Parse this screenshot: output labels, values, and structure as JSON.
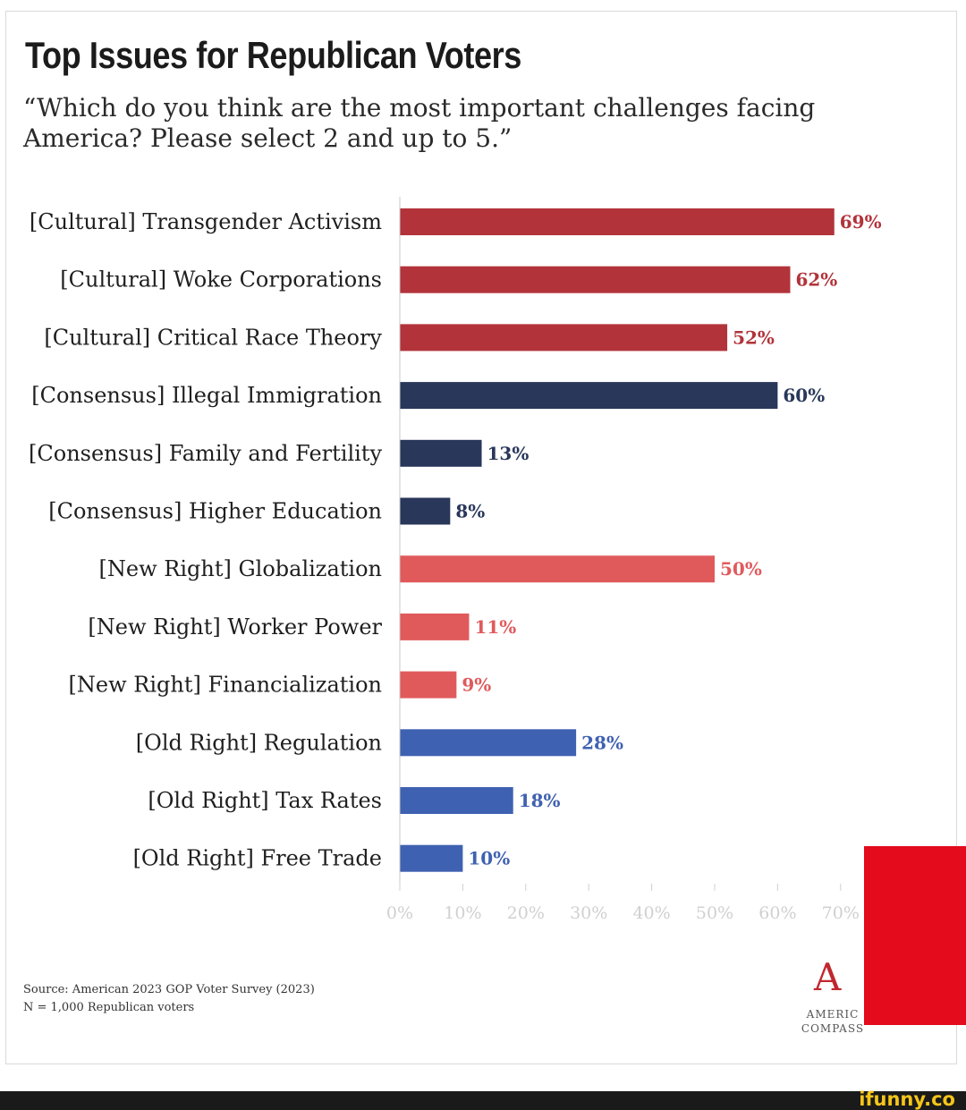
{
  "title": "Top Issues for Republican Voters",
  "subtitle": "“Which do you think are the most important challenges facing America? Please select 2 and up to 5.”",
  "source_line1": "Source: American 2023 GOP Voter Survey (2023)",
  "source_line2": "N = 1,000 Republican voters",
  "logo": {
    "mark": "A",
    "line1": "AMERIC",
    "line2": "COMPASS"
  },
  "footer_brand": "ifunny.co",
  "colors": {
    "cultural": "#b2333a",
    "consensus": "#28375a",
    "new_right": "#e05a5c",
    "old_right": "#3f61b1"
  },
  "chart_data": {
    "type": "bar",
    "orientation": "horizontal",
    "title": "Top Issues for Republican Voters",
    "xlabel": "",
    "ylabel": "",
    "xlim": [
      0,
      70
    ],
    "xticks": [
      "0%",
      "10%",
      "20%",
      "30%",
      "40%",
      "50%",
      "60%",
      "70%"
    ],
    "grid": false,
    "categories": [
      "[Cultural] Transgender Activism",
      "[Cultural] Woke Corporations",
      "[Cultural] Critical Race Theory",
      "[Consensus] Illegal Immigration",
      "[Consensus] Family and Fertility",
      "[Consensus] Higher Education",
      "[New Right] Globalization",
      "[New Right] Worker Power",
      "[New Right] Financialization",
      "[Old Right] Regulation",
      "[Old Right] Tax Rates",
      "[Old Right] Free Trade"
    ],
    "values": [
      69,
      62,
      52,
      60,
      13,
      8,
      50,
      11,
      9,
      28,
      18,
      10
    ],
    "value_labels": [
      "69%",
      "62%",
      "52%",
      "60%",
      "13%",
      "8%",
      "50%",
      "11%",
      "9%",
      "28%",
      "18%",
      "10%"
    ],
    "groups": [
      "cultural",
      "cultural",
      "cultural",
      "consensus",
      "consensus",
      "consensus",
      "new_right",
      "new_right",
      "new_right",
      "old_right",
      "old_right",
      "old_right"
    ]
  }
}
